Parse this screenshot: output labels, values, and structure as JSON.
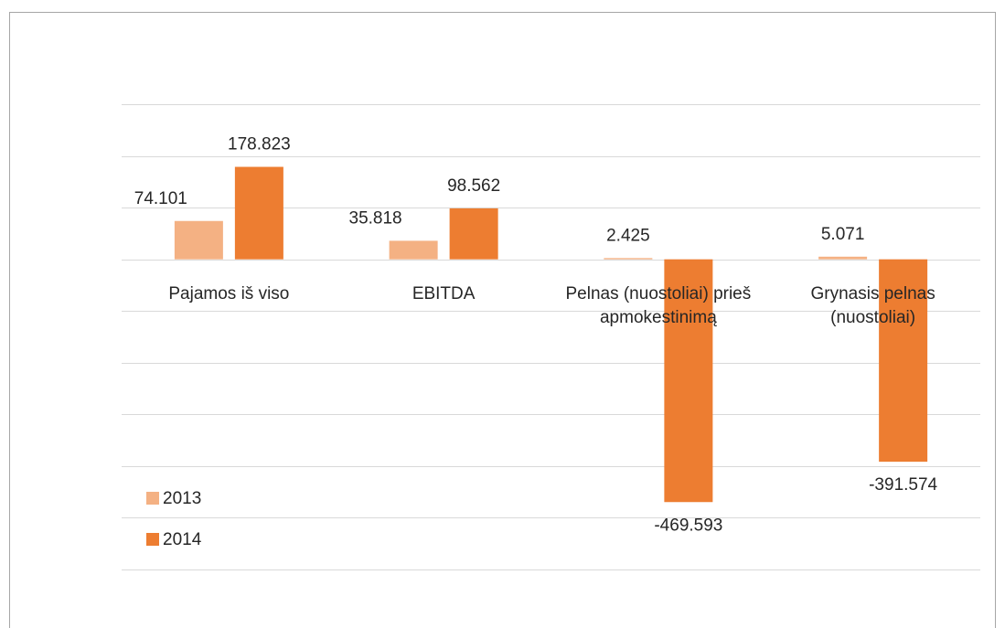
{
  "chart_data": {
    "type": "bar",
    "categories": [
      "Pajamos iš viso",
      "EBITDA",
      "Pelnas (nuostoliai) prieš apmokestinimą",
      "Grynasis pelnas (nuostoliai)"
    ],
    "series": [
      {
        "name": "2013",
        "color": "#f4b183",
        "values": [
          74.101,
          35.818,
          2.425,
          5.071
        ]
      },
      {
        "name": "2014",
        "color": "#ed7d31",
        "values": [
          178.823,
          98.562,
          -469.593,
          -391.574
        ]
      }
    ],
    "ylim": [
      -600,
      300
    ],
    "yticks": [
      -600,
      -500,
      -400,
      -300,
      -200,
      -100,
      0,
      100,
      200,
      300
    ],
    "grid": true,
    "legend": "bottom-left"
  }
}
